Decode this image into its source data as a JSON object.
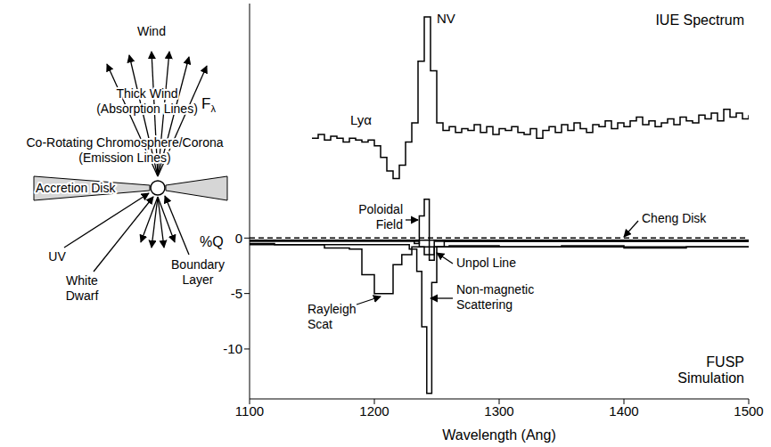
{
  "diagram": {
    "wind": "Wind",
    "thick_wind": [
      "Thick Wind",
      "(Absorption Lines)"
    ],
    "corona": [
      "Co-Rotating Chromosphere/Corona",
      "(Emission Lines)"
    ],
    "disk": "Accretion Disk",
    "uv": "UV",
    "white_dwarf": "White Dwarf",
    "boundary_layer": "Boundary Layer"
  },
  "chart_data": [
    {
      "type": "line",
      "title": "IUE Spectrum",
      "ylabel": "Fλ",
      "annotations": [
        "Lyα",
        "NV"
      ],
      "color": "#000000",
      "line_style": "step",
      "x": [
        1150,
        1155,
        1160,
        1165,
        1170,
        1175,
        1180,
        1185,
        1190,
        1195,
        1200,
        1205,
        1210,
        1215,
        1220,
        1225,
        1230,
        1235,
        1240,
        1245,
        1250,
        1255,
        1260,
        1265,
        1270,
        1275,
        1280,
        1285,
        1290,
        1295,
        1300,
        1305,
        1310,
        1315,
        1320,
        1325,
        1330,
        1335,
        1340,
        1345,
        1350,
        1355,
        1360,
        1365,
        1370,
        1375,
        1380,
        1385,
        1390,
        1395,
        1400,
        1405,
        1410,
        1415,
        1420,
        1425,
        1430,
        1435,
        1440,
        1445,
        1450,
        1455,
        1460,
        1465,
        1470,
        1475,
        1480,
        1485,
        1490,
        1495,
        1500
      ],
      "values": [
        3.0,
        3.2,
        2.9,
        3.1,
        3.0,
        2.8,
        3.0,
        2.9,
        2.8,
        2.9,
        2.6,
        2.0,
        1.3,
        0.9,
        1.6,
        2.8,
        3.8,
        7.0,
        9.3,
        6.5,
        3.8,
        3.4,
        3.6,
        3.3,
        3.5,
        3.4,
        3.7,
        3.3,
        3.6,
        3.2,
        3.5,
        3.4,
        3.6,
        3.3,
        3.2,
        3.5,
        3.0,
        3.4,
        3.6,
        3.3,
        3.7,
        3.4,
        3.8,
        3.5,
        3.3,
        3.7,
        3.6,
        3.9,
        3.5,
        3.8,
        3.6,
        3.9,
        4.1,
        3.7,
        3.9,
        3.6,
        3.8,
        4.0,
        3.7,
        4.1,
        3.9,
        3.8,
        4.2,
        4.0,
        4.3,
        3.9,
        4.5,
        4.1,
        4.3,
        4.0,
        4.2
      ],
      "xlim": [
        1100,
        1500
      ],
      "xticks": [
        1100,
        1200,
        1300,
        1400,
        1500
      ],
      "ylim": [
        0,
        10
      ],
      "tick_labels": false
    },
    {
      "type": "line",
      "title": "FUSP Simulation",
      "xlabel": "Wavelength (Ang)",
      "ylabel": "%Q",
      "line_style": "step",
      "series": [
        {
          "name": "Rayleigh Scat",
          "color": "#000000",
          "x": [
            1100,
            1120,
            1160,
            1180,
            1190,
            1200,
            1215,
            1222,
            1230,
            1260,
            1300,
            1350,
            1400,
            1450,
            1500
          ],
          "values": [
            -0.5,
            -0.6,
            -0.9,
            -1.0,
            -3.3,
            -5.0,
            -2.4,
            -1.5,
            -0.8,
            -0.7,
            -0.8,
            -0.7,
            -0.9,
            -0.8,
            -0.8
          ]
        },
        {
          "name": "Poloidal Field",
          "color": "#000000",
          "x": [
            1100,
            1232,
            1236,
            1240,
            1244,
            1248,
            1500
          ],
          "values": [
            -0.2,
            -0.5,
            2.0,
            3.5,
            -2.0,
            -0.3,
            -0.3
          ]
        },
        {
          "name": "Non-magnetic Scattering",
          "color": "#000000",
          "x": [
            1100,
            1228,
            1234,
            1238,
            1242,
            1246,
            1250,
            1500
          ],
          "values": [
            -0.6,
            -1.0,
            -3.0,
            -8.0,
            -14.0,
            -4.0,
            -0.8,
            -0.8
          ]
        },
        {
          "name": "Unpol Line",
          "color": "#000000",
          "x": [
            1100,
            1236,
            1240,
            1248,
            1256,
            1500
          ],
          "values": [
            -0.3,
            -0.8,
            -1.5,
            -0.8,
            -0.3,
            -0.3
          ]
        },
        {
          "name": "Cheng Disk",
          "color": "#000000",
          "x": [
            1100,
            1500
          ],
          "values": [
            -0.2,
            -0.2
          ]
        },
        {
          "color": "#000000",
          "line_style": "dashed",
          "x": [
            1100,
            1500
          ],
          "values": [
            0,
            0
          ]
        }
      ],
      "xlim": [
        1100,
        1500
      ],
      "xticks": [
        1100,
        1200,
        1300,
        1400,
        1500
      ],
      "ylim": [
        -14.5,
        3.8
      ],
      "yticks": [
        -10,
        -5,
        0
      ]
    }
  ]
}
